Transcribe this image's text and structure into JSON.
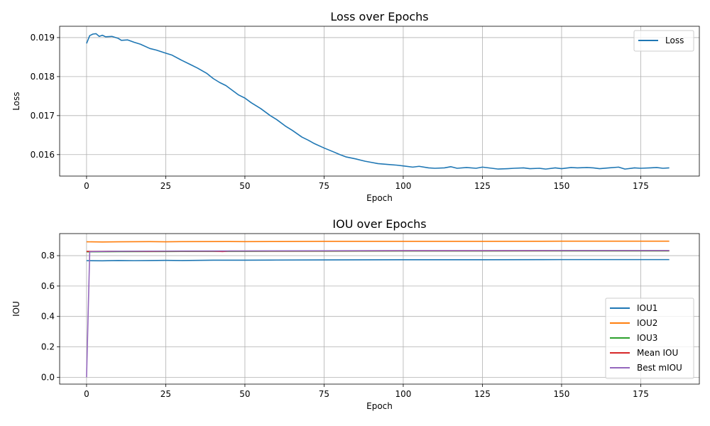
{
  "chart_data": [
    {
      "type": "line",
      "title": "Loss over Epochs",
      "xlabel": "Epoch",
      "ylabel": "Loss",
      "xlim": [
        -8.5,
        193.5
      ],
      "ylim": [
        0.01545,
        0.01929
      ],
      "xticks": [
        0,
        25,
        50,
        75,
        100,
        125,
        150,
        175
      ],
      "yticks": [
        0.016,
        0.017,
        0.018,
        0.019
      ],
      "ytick_labels": [
        "0.016",
        "0.017",
        "0.018",
        "0.019"
      ],
      "grid": true,
      "legend": "upper-right",
      "series": [
        {
          "name": "Loss",
          "color": "#1f77b4",
          "points": [
            [
              0,
              0.01885
            ],
            [
              1,
              0.01905
            ],
            [
              2,
              0.01909
            ],
            [
              3,
              0.0191
            ],
            [
              4,
              0.01903
            ],
            [
              5,
              0.01906
            ],
            [
              6,
              0.01902
            ],
            [
              8,
              0.01903
            ],
            [
              10,
              0.01898
            ],
            [
              11,
              0.01893
            ],
            [
              13,
              0.01894
            ],
            [
              15,
              0.01888
            ],
            [
              17,
              0.01883
            ],
            [
              20,
              0.01872
            ],
            [
              22,
              0.01868
            ],
            [
              25,
              0.0186
            ],
            [
              27,
              0.01855
            ],
            [
              30,
              0.01842
            ],
            [
              33,
              0.0183
            ],
            [
              35,
              0.01822
            ],
            [
              38,
              0.01808
            ],
            [
              40,
              0.01795
            ],
            [
              42,
              0.01785
            ],
            [
              44,
              0.01777
            ],
            [
              46,
              0.01765
            ],
            [
              48,
              0.01753
            ],
            [
              50,
              0.01745
            ],
            [
              52,
              0.01733
            ],
            [
              55,
              0.01718
            ],
            [
              58,
              0.017
            ],
            [
              60,
              0.0169
            ],
            [
              63,
              0.01672
            ],
            [
              65,
              0.01662
            ],
            [
              68,
              0.01645
            ],
            [
              70,
              0.01637
            ],
            [
              72,
              0.01628
            ],
            [
              75,
              0.01617
            ],
            [
              78,
              0.01607
            ],
            [
              80,
              0.016
            ],
            [
              82,
              0.01594
            ],
            [
              85,
              0.01589
            ],
            [
              88,
              0.01583
            ],
            [
              90,
              0.0158
            ],
            [
              92,
              0.01577
            ],
            [
              95,
              0.01575
            ],
            [
              98,
              0.01573
            ],
            [
              100,
              0.01571
            ],
            [
              103,
              0.01568
            ],
            [
              105,
              0.0157
            ],
            [
              108,
              0.01566
            ],
            [
              110,
              0.01565
            ],
            [
              113,
              0.01566
            ],
            [
              115,
              0.01569
            ],
            [
              117,
              0.01565
            ],
            [
              120,
              0.01567
            ],
            [
              123,
              0.01565
            ],
            [
              125,
              0.01568
            ],
            [
              128,
              0.01565
            ],
            [
              130,
              0.01563
            ],
            [
              133,
              0.01564
            ],
            [
              135,
              0.01565
            ],
            [
              138,
              0.01566
            ],
            [
              140,
              0.01564
            ],
            [
              143,
              0.01565
            ],
            [
              145,
              0.01563
            ],
            [
              148,
              0.01566
            ],
            [
              150,
              0.01564
            ],
            [
              153,
              0.01567
            ],
            [
              155,
              0.01566
            ],
            [
              158,
              0.01567
            ],
            [
              160,
              0.01566
            ],
            [
              162,
              0.01564
            ],
            [
              165,
              0.01566
            ],
            [
              168,
              0.01568
            ],
            [
              170,
              0.01563
            ],
            [
              173,
              0.01566
            ],
            [
              175,
              0.01565
            ],
            [
              178,
              0.01566
            ],
            [
              180,
              0.01567
            ],
            [
              182,
              0.01565
            ],
            [
              184,
              0.01566
            ]
          ]
        }
      ]
    },
    {
      "type": "line",
      "title": "IOU over Epochs",
      "xlabel": "Epoch",
      "ylabel": "IOU",
      "xlim": [
        -8.5,
        193.5
      ],
      "ylim": [
        -0.045,
        0.945
      ],
      "xticks": [
        0,
        25,
        50,
        75,
        100,
        125,
        150,
        175
      ],
      "yticks": [
        0.0,
        0.2,
        0.4,
        0.6,
        0.8
      ],
      "ytick_labels": [
        "0.0",
        "0.2",
        "0.4",
        "0.6",
        "0.8"
      ],
      "grid": true,
      "legend": "lower-right",
      "series": [
        {
          "name": "IOU1",
          "color": "#1f77b4",
          "points": [
            [
              0,
              0.767
            ],
            [
              5,
              0.766
            ],
            [
              10,
              0.768
            ],
            [
              15,
              0.767
            ],
            [
              20,
              0.768
            ],
            [
              25,
              0.769
            ],
            [
              30,
              0.768
            ],
            [
              40,
              0.77
            ],
            [
              50,
              0.77
            ],
            [
              60,
              0.771
            ],
            [
              75,
              0.772
            ],
            [
              100,
              0.773
            ],
            [
              125,
              0.773
            ],
            [
              150,
              0.774
            ],
            [
              175,
              0.774
            ],
            [
              184,
              0.774
            ]
          ]
        },
        {
          "name": "IOU2",
          "color": "#ff7f0e",
          "points": [
            [
              0,
              0.891
            ],
            [
              5,
              0.89
            ],
            [
              10,
              0.891
            ],
            [
              20,
              0.892
            ],
            [
              25,
              0.891
            ],
            [
              30,
              0.892
            ],
            [
              45,
              0.893
            ],
            [
              50,
              0.892
            ],
            [
              60,
              0.893
            ],
            [
              75,
              0.894
            ],
            [
              100,
              0.894
            ],
            [
              125,
              0.894
            ],
            [
              150,
              0.895
            ],
            [
              175,
              0.895
            ],
            [
              184,
              0.895
            ]
          ]
        },
        {
          "name": "IOU3",
          "color": "#2ca02c",
          "points": [
            [
              0,
              0.825
            ],
            [
              10,
              0.826
            ],
            [
              25,
              0.827
            ],
            [
              50,
              0.828
            ],
            [
              75,
              0.829
            ],
            [
              100,
              0.83
            ],
            [
              125,
              0.83
            ],
            [
              150,
              0.831
            ],
            [
              175,
              0.831
            ],
            [
              184,
              0.831
            ]
          ]
        },
        {
          "name": "Mean IOU",
          "color": "#d62728",
          "points": [
            [
              0,
              0.828
            ],
            [
              5,
              0.828
            ],
            [
              10,
              0.829
            ],
            [
              20,
              0.828
            ],
            [
              25,
              0.829
            ],
            [
              40,
              0.829
            ],
            [
              43,
              0.827
            ],
            [
              45,
              0.83
            ],
            [
              50,
              0.83
            ],
            [
              75,
              0.831
            ],
            [
              100,
              0.832
            ],
            [
              125,
              0.832
            ],
            [
              150,
              0.833
            ],
            [
              175,
              0.833
            ],
            [
              184,
              0.833
            ]
          ]
        },
        {
          "name": "Best mIOU",
          "color": "#9467bd",
          "points": [
            [
              0,
              0.0
            ],
            [
              1,
              0.826
            ],
            [
              2,
              0.827
            ],
            [
              10,
              0.829
            ],
            [
              25,
              0.83
            ],
            [
              50,
              0.831
            ],
            [
              75,
              0.832
            ],
            [
              100,
              0.833
            ],
            [
              125,
              0.833
            ],
            [
              150,
              0.834
            ],
            [
              175,
              0.834
            ],
            [
              184,
              0.834
            ]
          ]
        }
      ]
    }
  ]
}
